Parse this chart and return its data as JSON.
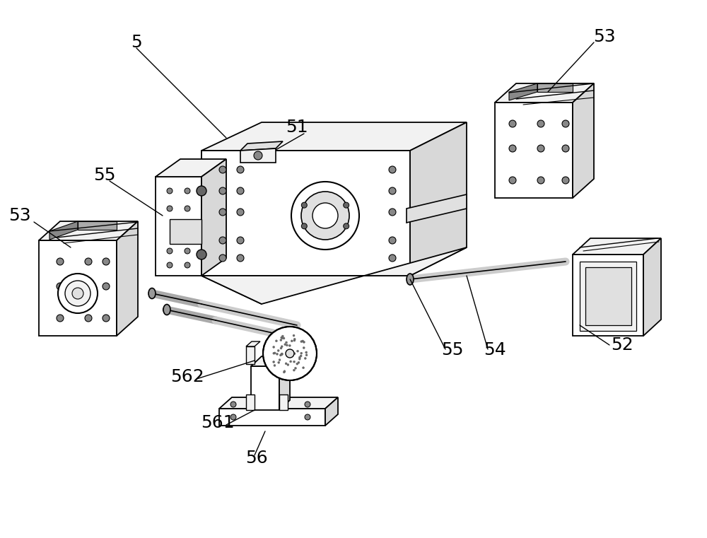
{
  "bg_color": "#ffffff",
  "lc": "#000000",
  "face_white": "#ffffff",
  "face_light": "#f2f2f2",
  "face_mid": "#e0e0e0",
  "face_dark": "#c8c8c8",
  "face_shade": "#d8d8d8"
}
